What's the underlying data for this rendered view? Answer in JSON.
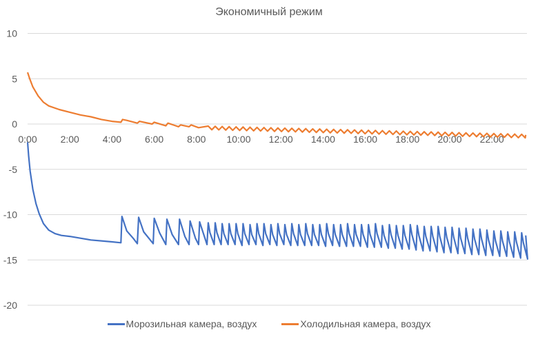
{
  "chart_data": {
    "type": "line",
    "title": "Экономичный режим",
    "xlabel": "",
    "ylabel": "",
    "xlim": [
      0,
      23.6
    ],
    "ylim": [
      -20,
      10
    ],
    "grid": true,
    "legend_position": "bottom",
    "x_ticks": [
      {
        "value": 0,
        "label": "0:00"
      },
      {
        "value": 2,
        "label": "2:00"
      },
      {
        "value": 4,
        "label": "4:00"
      },
      {
        "value": 6,
        "label": "6:00"
      },
      {
        "value": 8,
        "label": "8:00"
      },
      {
        "value": 10,
        "label": "10:00"
      },
      {
        "value": 12,
        "label": "12:00"
      },
      {
        "value": 14,
        "label": "14:00"
      },
      {
        "value": 16,
        "label": "16:00"
      },
      {
        "value": 18,
        "label": "18:00"
      },
      {
        "value": 20,
        "label": "20:00"
      },
      {
        "value": 22,
        "label": "22:00"
      }
    ],
    "y_ticks": [
      {
        "value": 10,
        "label": "10"
      },
      {
        "value": 5,
        "label": "5"
      },
      {
        "value": 0,
        "label": "0"
      },
      {
        "value": -5,
        "label": "-5"
      },
      {
        "value": -10,
        "label": "-10"
      },
      {
        "value": -15,
        "label": "-15"
      },
      {
        "value": -20,
        "label": "-20"
      }
    ],
    "series": [
      {
        "name": "Морозильная камера, воздух",
        "color": "#4472C4",
        "points": [
          [
            0,
            -2
          ],
          [
            0.05,
            -3.5
          ],
          [
            0.12,
            -5.2
          ],
          [
            0.25,
            -7.2
          ],
          [
            0.4,
            -8.8
          ],
          [
            0.55,
            -9.9
          ],
          [
            0.75,
            -11
          ],
          [
            1,
            -11.7
          ],
          [
            1.3,
            -12.1
          ],
          [
            1.6,
            -12.3
          ],
          [
            2,
            -12.4
          ],
          [
            2.5,
            -12.6
          ],
          [
            3,
            -12.8
          ],
          [
            3.5,
            -12.9
          ],
          [
            4,
            -13
          ],
          [
            4.42,
            -13.1
          ],
          [
            4.47,
            -10.2
          ],
          [
            4.7,
            -11.8
          ],
          [
            5.0,
            -12.6
          ],
          [
            5.2,
            -13.2
          ],
          [
            5.26,
            -10.3
          ],
          [
            5.5,
            -11.9
          ],
          [
            5.95,
            -13.2
          ],
          [
            6.0,
            -10.4
          ],
          [
            6.25,
            -12
          ],
          [
            6.55,
            -13.3
          ],
          [
            6.6,
            -10.5
          ],
          [
            6.85,
            -12.2
          ],
          [
            7.15,
            -13.3
          ],
          [
            7.2,
            -10.5
          ],
          [
            7.45,
            -12.4
          ],
          [
            7.65,
            -13.3
          ],
          [
            7.7,
            -10.7
          ],
          [
            7.95,
            -12.6
          ],
          [
            8.1,
            -13.3
          ],
          [
            8.15,
            -10.8
          ],
          [
            8.5,
            -13.3
          ]
        ],
        "cycles": [
          [
            8.56,
            -10.9,
            -13.3
          ],
          [
            8.89,
            -10.9,
            -13.3
          ],
          [
            9.22,
            -11.0,
            -13.3
          ],
          [
            9.55,
            -11.0,
            -13.3
          ],
          [
            9.88,
            -11.0,
            -13.4
          ],
          [
            10.21,
            -11.0,
            -13.3
          ],
          [
            10.54,
            -11.1,
            -13.3
          ],
          [
            10.87,
            -11.0,
            -13.4
          ],
          [
            11.2,
            -11.0,
            -13.3
          ],
          [
            11.53,
            -11.1,
            -13.4
          ],
          [
            11.86,
            -11.0,
            -13.3
          ],
          [
            12.19,
            -11.1,
            -13.4
          ],
          [
            12.52,
            -11.0,
            -13.4
          ],
          [
            12.85,
            -11.1,
            -13.4
          ],
          [
            13.18,
            -11.0,
            -13.4
          ],
          [
            13.51,
            -11.1,
            -13.4
          ],
          [
            13.84,
            -11.1,
            -13.5
          ],
          [
            14.17,
            -11.0,
            -13.4
          ],
          [
            14.5,
            -11.1,
            -13.5
          ],
          [
            14.83,
            -11.1,
            -13.5
          ],
          [
            15.16,
            -11.0,
            -13.5
          ],
          [
            15.49,
            -11.1,
            -13.5
          ],
          [
            15.82,
            -11.1,
            -13.6
          ],
          [
            16.15,
            -11.1,
            -13.6
          ],
          [
            16.48,
            -11.0,
            -13.6
          ],
          [
            16.81,
            -11.2,
            -13.7
          ],
          [
            17.14,
            -11.1,
            -13.7
          ],
          [
            17.47,
            -11.2,
            -13.8
          ],
          [
            17.8,
            -11.2,
            -13.8
          ],
          [
            18.13,
            -11.1,
            -13.9
          ],
          [
            18.46,
            -11.2,
            -14.0
          ],
          [
            18.79,
            -11.3,
            -14.0
          ],
          [
            19.12,
            -11.3,
            -14.1
          ],
          [
            19.45,
            -11.3,
            -14.2
          ],
          [
            19.78,
            -11.4,
            -14.2
          ],
          [
            20.11,
            -11.4,
            -14.3
          ],
          [
            20.44,
            -11.5,
            -14.3
          ],
          [
            20.77,
            -11.5,
            -14.4
          ],
          [
            21.1,
            -11.6,
            -14.4
          ],
          [
            21.43,
            -11.6,
            -14.5
          ],
          [
            21.76,
            -11.7,
            -14.5
          ],
          [
            22.09,
            -11.8,
            -14.6
          ],
          [
            22.42,
            -11.8,
            -14.6
          ],
          [
            22.75,
            -11.9,
            -14.7
          ],
          [
            23.08,
            -11.9,
            -14.8
          ],
          [
            23.41,
            -12.0,
            -14.9
          ]
        ],
        "end_value": -12.3
      },
      {
        "name": "Холодильная камера, воздух",
        "color": "#ED7D31",
        "points": [
          [
            0,
            5.7
          ],
          [
            0.1,
            5.0
          ],
          [
            0.25,
            4.1
          ],
          [
            0.5,
            3.1
          ],
          [
            0.75,
            2.4
          ],
          [
            1,
            2.0
          ],
          [
            1.5,
            1.6
          ],
          [
            2,
            1.3
          ],
          [
            2.5,
            1.0
          ],
          [
            3,
            0.8
          ],
          [
            3.5,
            0.5
          ],
          [
            4,
            0.3
          ],
          [
            4.42,
            0.2
          ],
          [
            4.5,
            0.5
          ],
          [
            4.7,
            0.4
          ],
          [
            5.2,
            0.1
          ],
          [
            5.3,
            0.3
          ],
          [
            5.9,
            0.0
          ],
          [
            6.0,
            0.2
          ],
          [
            6.55,
            -0.2
          ],
          [
            6.65,
            0.1
          ],
          [
            7.15,
            -0.3
          ],
          [
            7.25,
            -0.1
          ],
          [
            7.65,
            -0.3
          ],
          [
            7.75,
            -0.1
          ],
          [
            8.1,
            -0.4
          ]
        ],
        "cycles_high": [
          -0.23,
          -0.25,
          -0.27,
          -0.29,
          -0.31,
          -0.33,
          -0.35,
          -0.37,
          -0.39,
          -0.41,
          -0.43,
          -0.45,
          -0.47,
          -0.49,
          -0.51,
          -0.53,
          -0.55,
          -0.57,
          -0.59,
          -0.61,
          -0.63,
          -0.65,
          -0.67,
          -0.69,
          -0.71,
          -0.73,
          -0.75,
          -0.77,
          -0.79,
          -0.81,
          -0.83,
          -0.85,
          -0.87,
          -0.89,
          -0.91,
          -0.93,
          -0.95,
          -0.97,
          -0.99,
          -1.01,
          -1.03,
          -1.05,
          -1.07,
          -1.09,
          -1.11,
          -1.13
        ],
        "cycle_amplitude": 0.4
      }
    ]
  }
}
